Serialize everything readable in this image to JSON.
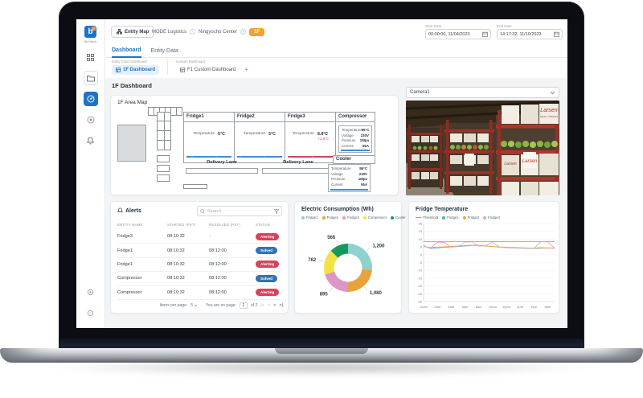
{
  "sidebar": {
    "logo_text": "BizStack",
    "icons": [
      "apps-icon",
      "entity-folder-icon",
      "dashboard-icon",
      "target-icon",
      "bell-icon",
      "settings-icon",
      "help-icon"
    ]
  },
  "topbar": {
    "entity_map_label": "Entity Map",
    "breadcrumb": [
      "MODE Logistics",
      "Ningyocho Center"
    ],
    "breadcrumb_badge": "1F",
    "start_date_label": "Start Date",
    "start_date_value": "00:00:00, 11/04/2023",
    "end_date_label": "End Date",
    "end_date_value": "14:17:32, 11/10/2023"
  },
  "tabs": {
    "dashboard": "Dashboard",
    "entity_data": "Entity Data"
  },
  "subtabs": {
    "entity_class_label": "Entity Class Dashboard",
    "custom_label": "Custom Dashboard",
    "entity_class_tab": "1F Dashboard",
    "custom_tab": "F1 Custom Dashboard",
    "add_button": "+"
  },
  "page": {
    "title": "1F Dashboard"
  },
  "area_map": {
    "title": "1F Area Map",
    "fridge1": {
      "name": "Fridge1",
      "temp_label": "Temperature",
      "temp": "5°C"
    },
    "fridge2": {
      "name": "Fridge2",
      "temp_label": "Temperature",
      "temp": "5°C"
    },
    "fridge3": {
      "name": "Fridge3",
      "temp_label": "Temperature",
      "temp": "8.8°C",
      "delta": "+1.8°C"
    },
    "compressor": {
      "name": "Compressor",
      "rows": [
        [
          "Temperature",
          "86°C"
        ],
        [
          "Voltage",
          "230V"
        ],
        [
          "Pressure",
          "1Mpa"
        ],
        [
          "Current",
          "55A"
        ]
      ]
    },
    "cooler": {
      "name": "Cooler",
      "rows": [
        [
          "Temperature",
          "86°C"
        ],
        [
          "Voltage",
          "230V"
        ],
        [
          "Pressure",
          "1Mpa"
        ],
        [
          "Current",
          "55A"
        ]
      ]
    },
    "delivery_lane_1": "Delivery Lane",
    "delivery_lane_2": "Delivery Lane"
  },
  "camera": {
    "selected": "Camera1",
    "brand": "Larsen",
    "brand_sub": "FANCY APPLES"
  },
  "alerts": {
    "title": "Alerts",
    "search_placeholder": "Search",
    "columns": [
      "ENTITY NAME",
      "STARTED (PST)",
      "RESOLVED (PST)",
      "STATUS"
    ],
    "rows": [
      {
        "entity": "Fridge3",
        "started": "08:10:32",
        "resolved": "-",
        "status": "Alerting"
      },
      {
        "entity": "Fridge1",
        "started": "08:10:32",
        "resolved": "08:12:00",
        "status": "Solved"
      },
      {
        "entity": "Fridge1",
        "started": "08:10:32",
        "resolved": "08:12:00",
        "status": "Alerting"
      },
      {
        "entity": "Compressor",
        "started": "08:10:32",
        "resolved": "08:12:00",
        "status": "Solved"
      },
      {
        "entity": "Compressor",
        "started": "08:10:32",
        "resolved": "08:12:00",
        "status": "Alerting"
      }
    ],
    "pagination": {
      "items_label": "Items per page:",
      "items_value": "5",
      "page_label": "You are on page:",
      "page_value": "1",
      "total_label": "of 2",
      "icons": {
        "first": "|<",
        "prev": "<",
        "next": ">",
        "last": ">|"
      }
    }
  },
  "chart_data": [
    {
      "type": "pie",
      "donut": true,
      "title": "Electric Consumption (Wh)",
      "labels": [
        "Fridge1",
        "Fridge2",
        "Fridge3",
        "Compressor",
        "Cooler"
      ],
      "values": [
        1200,
        1080,
        895,
        762,
        566
      ],
      "value_labels": [
        "1,200",
        "1,080",
        "895",
        "762",
        "566"
      ],
      "colors": [
        "#8ed1cd",
        "#e8a33d",
        "#dd97c5",
        "#f2e244",
        "#149a5c"
      ],
      "legend_position": "top"
    },
    {
      "type": "line",
      "title": "Fridge Temperature",
      "x_ticks": [
        "12am",
        "2am",
        "4am",
        "6am",
        "8am",
        "10am",
        "12pm",
        "2pm",
        "4pm",
        "6pm"
      ],
      "ylim": [
        -30,
        20
      ],
      "ytick_step": 5,
      "grid": true,
      "legend_position": "top",
      "series": [
        {
          "name": "Threshold",
          "color": "#f2777d",
          "marker": "line",
          "constant": 8.5
        },
        {
          "name": "Fridge1",
          "color": "#4cb8ae",
          "values": [
            5.8,
            4.0,
            4.3,
            4.8,
            5.0,
            5.3,
            5.6,
            5.9,
            6.0,
            5.7,
            5.2,
            4.8,
            4.6,
            4.4,
            4.2,
            4.1,
            4.0,
            4.2,
            4.4,
            4.1
          ]
        },
        {
          "name": "Fridge2",
          "color": "#f0a93c",
          "values": [
            5.2,
            4.6,
            4.9,
            5.1,
            5.4,
            5.6,
            5.9,
            6.1,
            5.8,
            5.6,
            5.3,
            5.0,
            4.8,
            4.6,
            4.5,
            4.3,
            4.2,
            4.5,
            4.3,
            4.4
          ]
        },
        {
          "name": "Fridge3",
          "color": "#f19fc6",
          "values": [
            5.5,
            4.2,
            7.9,
            7.9,
            4.8,
            5.2,
            8.2,
            8.2,
            5.6,
            5.8,
            8.2,
            4.9,
            4.4,
            4.3,
            4.2,
            4.3,
            4.0,
            8.3,
            8.3,
            4.2
          ]
        }
      ]
    }
  ]
}
